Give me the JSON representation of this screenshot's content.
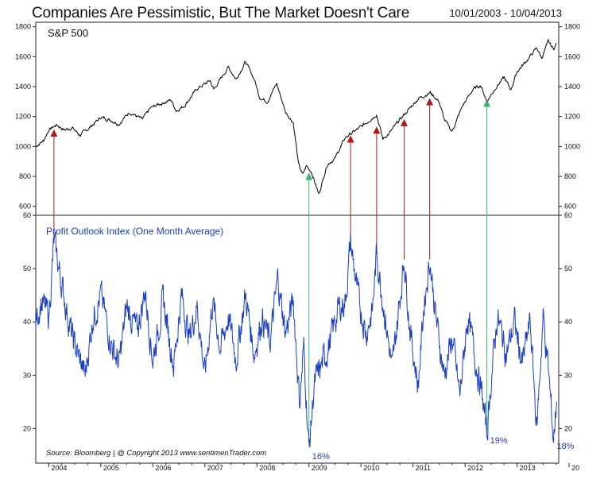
{
  "header": {
    "title": "Companies Are Pessimistic, But The Market Doesn't Care",
    "date_range": "10/01/2003 - 10/04/2013"
  },
  "footer": {
    "source_text": "Source:  Bloomberg  |  @ Copyright 2013  www.sentimenTrader.com"
  },
  "colors": {
    "sp500_line": "#000000",
    "profit_line": "#1a3fc4",
    "red_marker": "#b01818",
    "green_marker": "#3cb371",
    "percent_label": "#2a3aa8"
  },
  "chart_data": [
    {
      "type": "line",
      "title": "S&P 500",
      "yticks": [
        600,
        800,
        1000,
        1200,
        1400,
        1600,
        1800
      ],
      "ylim": [
        540,
        1830
      ],
      "xlim": [
        2003.75,
        2013.8
      ],
      "series": [
        {
          "name": "S&P 500",
          "points": [
            [
              2003.75,
              1000
            ],
            [
              2003.9,
              1040
            ],
            [
              2004.0,
              1110
            ],
            [
              2004.15,
              1145
            ],
            [
              2004.3,
              1110
            ],
            [
              2004.45,
              1125
            ],
            [
              2004.6,
              1075
            ],
            [
              2004.8,
              1130
            ],
            [
              2005.0,
              1195
            ],
            [
              2005.2,
              1175
            ],
            [
              2005.35,
              1150
            ],
            [
              2005.55,
              1230
            ],
            [
              2005.8,
              1180
            ],
            [
              2005.95,
              1255
            ],
            [
              2006.1,
              1280
            ],
            [
              2006.35,
              1310
            ],
            [
              2006.45,
              1240
            ],
            [
              2006.6,
              1270
            ],
            [
              2006.85,
              1385
            ],
            [
              2007.1,
              1440
            ],
            [
              2007.17,
              1380
            ],
            [
              2007.45,
              1530
            ],
            [
              2007.6,
              1450
            ],
            [
              2007.78,
              1565
            ],
            [
              2007.95,
              1450
            ],
            [
              2008.05,
              1330
            ],
            [
              2008.2,
              1300
            ],
            [
              2008.38,
              1420
            ],
            [
              2008.55,
              1230
            ],
            [
              2008.7,
              1160
            ],
            [
              2008.8,
              880
            ],
            [
              2008.88,
              810
            ],
            [
              2008.95,
              870
            ],
            [
              2009.05,
              830
            ],
            [
              2009.19,
              680
            ],
            [
              2009.35,
              880
            ],
            [
              2009.5,
              920
            ],
            [
              2009.7,
              1060
            ],
            [
              2010.0,
              1130
            ],
            [
              2010.3,
              1215
            ],
            [
              2010.42,
              1050
            ],
            [
              2010.55,
              1090
            ],
            [
              2010.75,
              1180
            ],
            [
              2010.95,
              1260
            ],
            [
              2011.1,
              1320
            ],
            [
              2011.33,
              1360
            ],
            [
              2011.5,
              1300
            ],
            [
              2011.6,
              1180
            ],
            [
              2011.75,
              1100
            ],
            [
              2011.95,
              1270
            ],
            [
              2012.15,
              1380
            ],
            [
              2012.3,
              1410
            ],
            [
              2012.42,
              1300
            ],
            [
              2012.6,
              1400
            ],
            [
              2012.75,
              1460
            ],
            [
              2012.88,
              1380
            ],
            [
              2013.0,
              1500
            ],
            [
              2013.2,
              1580
            ],
            [
              2013.38,
              1660
            ],
            [
              2013.47,
              1590
            ],
            [
              2013.6,
              1700
            ],
            [
              2013.7,
              1650
            ],
            [
              2013.76,
              1690
            ]
          ]
        }
      ],
      "markers": [
        {
          "x": 2004.1,
          "y": 1100,
          "type": "red"
        },
        {
          "x": 2009.8,
          "y": 1060,
          "type": "red"
        },
        {
          "x": 2010.3,
          "y": 1120,
          "type": "red"
        },
        {
          "x": 2010.83,
          "y": 1170,
          "type": "red"
        },
        {
          "x": 2011.32,
          "y": 1310,
          "type": "red"
        },
        {
          "x": 2009.0,
          "y": 810,
          "type": "green"
        },
        {
          "x": 2012.42,
          "y": 1300,
          "type": "green"
        }
      ]
    },
    {
      "type": "line",
      "title": "Profit Outlook Index (One Month Average)",
      "yticks": [
        20,
        30,
        40,
        50,
        60
      ],
      "ylim": [
        13.5,
        60
      ],
      "xlim": [
        2003.75,
        2013.8
      ],
      "xticks": [
        "2004",
        "2005",
        "2006",
        "2007",
        "2008",
        "2009",
        "2010",
        "2011",
        "2012",
        "2013",
        "20"
      ],
      "series": [
        {
          "name": "Profit Outlook Index",
          "points": [
            [
              2003.75,
              40
            ],
            [
              2003.85,
              44
            ],
            [
              2004.0,
              41
            ],
            [
              2004.1,
              55
            ],
            [
              2004.25,
              47
            ],
            [
              2004.45,
              37
            ],
            [
              2004.7,
              30
            ],
            [
              2004.85,
              41
            ],
            [
              2005.0,
              45
            ],
            [
              2005.2,
              36
            ],
            [
              2005.35,
              32
            ],
            [
              2005.5,
              43
            ],
            [
              2005.7,
              38
            ],
            [
              2005.85,
              46
            ],
            [
              2006.0,
              33
            ],
            [
              2006.2,
              44
            ],
            [
              2006.4,
              32
            ],
            [
              2006.55,
              45
            ],
            [
              2006.7,
              37
            ],
            [
              2006.85,
              43
            ],
            [
              2007.0,
              30
            ],
            [
              2007.15,
              44
            ],
            [
              2007.3,
              35
            ],
            [
              2007.45,
              41
            ],
            [
              2007.6,
              33
            ],
            [
              2007.78,
              45
            ],
            [
              2007.95,
              34
            ],
            [
              2008.1,
              41
            ],
            [
              2008.25,
              36
            ],
            [
              2008.4,
              48
            ],
            [
              2008.55,
              38
            ],
            [
              2008.7,
              44
            ],
            [
              2008.82,
              25
            ],
            [
              2008.9,
              35
            ],
            [
              2009.0,
              16
            ],
            [
              2009.1,
              28
            ],
            [
              2009.25,
              32
            ],
            [
              2009.4,
              36
            ],
            [
              2009.55,
              42
            ],
            [
              2009.7,
              44
            ],
            [
              2009.8,
              55
            ],
            [
              2009.95,
              44
            ],
            [
              2010.1,
              38
            ],
            [
              2010.22,
              42
            ],
            [
              2010.3,
              53
            ],
            [
              2010.45,
              42
            ],
            [
              2010.6,
              31
            ],
            [
              2010.7,
              40
            ],
            [
              2010.83,
              52
            ],
            [
              2010.95,
              38
            ],
            [
              2011.1,
              28
            ],
            [
              2011.2,
              42
            ],
            [
              2011.32,
              52
            ],
            [
              2011.45,
              40
            ],
            [
              2011.6,
              30
            ],
            [
              2011.75,
              37
            ],
            [
              2011.9,
              26
            ],
            [
              2012.05,
              41
            ],
            [
              2012.2,
              33
            ],
            [
              2012.33,
              26
            ],
            [
              2012.42,
              19
            ],
            [
              2012.5,
              29
            ],
            [
              2012.62,
              41
            ],
            [
              2012.8,
              34
            ],
            [
              2012.95,
              40
            ],
            [
              2013.1,
              32
            ],
            [
              2013.25,
              40
            ],
            [
              2013.38,
              20
            ],
            [
              2013.5,
              41
            ],
            [
              2013.6,
              31
            ],
            [
              2013.7,
              18
            ],
            [
              2013.76,
              25
            ]
          ]
        }
      ],
      "annotations": [
        {
          "text": "16%",
          "x": 2009.0,
          "y": 16
        },
        {
          "text": "19%",
          "x": 2012.42,
          "y": 19
        },
        {
          "text": "18%",
          "x": 2013.7,
          "y": 18
        }
      ]
    }
  ],
  "connectors": [
    {
      "x": 2004.1,
      "type": "red"
    },
    {
      "x": 2009.0,
      "type": "green"
    },
    {
      "x": 2009.8,
      "type": "red"
    },
    {
      "x": 2010.3,
      "type": "red"
    },
    {
      "x": 2010.83,
      "type": "red"
    },
    {
      "x": 2011.32,
      "type": "red"
    },
    {
      "x": 2012.42,
      "type": "green"
    }
  ]
}
